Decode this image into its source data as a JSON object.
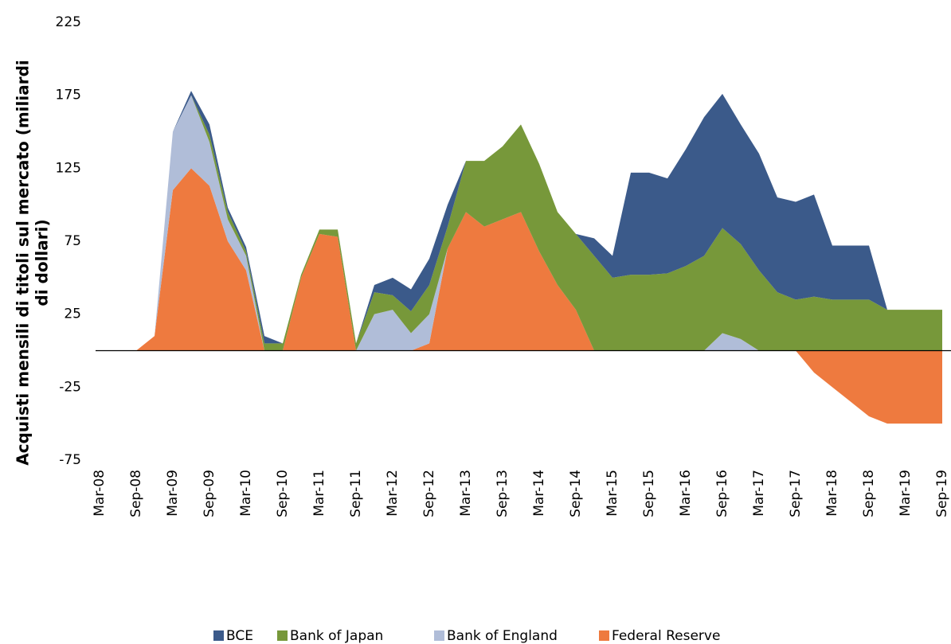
{
  "chart_data": {
    "type": "stacked_area",
    "y_label": [
      "Acquisti mensili di titoli sul mercato (miliardi",
      "di dollari)"
    ],
    "categories": [
      "Mar-08",
      null,
      "Sep-08",
      null,
      "Mar-09",
      null,
      "Sep-09",
      null,
      "Mar-10",
      null,
      "Sep-10",
      null,
      "Mar-11",
      null,
      "Sep-11",
      null,
      "Mar-12",
      null,
      "Sep-12",
      null,
      "Mar-13",
      null,
      "Sep-13",
      null,
      "Mar-14",
      null,
      "Sep-14",
      null,
      "Mar-15",
      null,
      "Sep-15",
      null,
      "Mar-16",
      null,
      "Sep-16",
      null,
      "Mar-17",
      null,
      "Sep-17",
      null,
      "Mar-18",
      null,
      "Sep-18",
      null,
      "Mar-19",
      null,
      "Sep-19"
    ],
    "series": [
      {
        "name": "BCE",
        "color": "#3b5a8a",
        "values": [
          0,
          0,
          0,
          0,
          0,
          3,
          7,
          3,
          3,
          5,
          0,
          0,
          0,
          0,
          0,
          5,
          12,
          15,
          18,
          15,
          0,
          0,
          0,
          0,
          0,
          0,
          0,
          12,
          15,
          70,
          70,
          65,
          80,
          95,
          92,
          82,
          80,
          65,
          67,
          70,
          37,
          37,
          37,
          0,
          0,
          0,
          0
        ]
      },
      {
        "name": "Bank of Japan",
        "color": "#77983a",
        "values": [
          0,
          0,
          0,
          0,
          0,
          0,
          5,
          5,
          3,
          5,
          5,
          2,
          3,
          5,
          5,
          15,
          10,
          15,
          20,
          15,
          35,
          45,
          50,
          60,
          60,
          50,
          52,
          65,
          50,
          52,
          52,
          53,
          58,
          65,
          72,
          65,
          55,
          40,
          35,
          37,
          35,
          35,
          35,
          28,
          28,
          28,
          28
        ]
      },
      {
        "name": "Bank of England",
        "color": "#b0bdd8",
        "values": [
          0,
          0,
          0,
          0,
          40,
          50,
          30,
          15,
          10,
          0,
          0,
          0,
          0,
          0,
          0,
          25,
          28,
          12,
          20,
          0,
          0,
          0,
          0,
          0,
          0,
          0,
          0,
          0,
          0,
          0,
          0,
          0,
          0,
          0,
          12,
          8,
          0,
          0,
          0,
          0,
          0,
          0,
          0,
          0,
          0,
          0,
          0
        ]
      },
      {
        "name": "Federal Reserve",
        "color": "#ee7a3f",
        "values": [
          0,
          0,
          0,
          10,
          110,
          125,
          113,
          75,
          55,
          0,
          0,
          50,
          80,
          78,
          0,
          0,
          0,
          0,
          5,
          70,
          95,
          85,
          90,
          95,
          68,
          45,
          28,
          0,
          0,
          0,
          0,
          0,
          0,
          0,
          0,
          0,
          0,
          0,
          0,
          -15,
          -25,
          -35,
          -45,
          -50,
          -50,
          -50,
          -50
        ]
      }
    ],
    "ylim": [
      -75,
      225
    ],
    "yticks": [
      -75,
      -25,
      25,
      75,
      125,
      175,
      225
    ],
    "grid": false,
    "legend": "bottom"
  }
}
